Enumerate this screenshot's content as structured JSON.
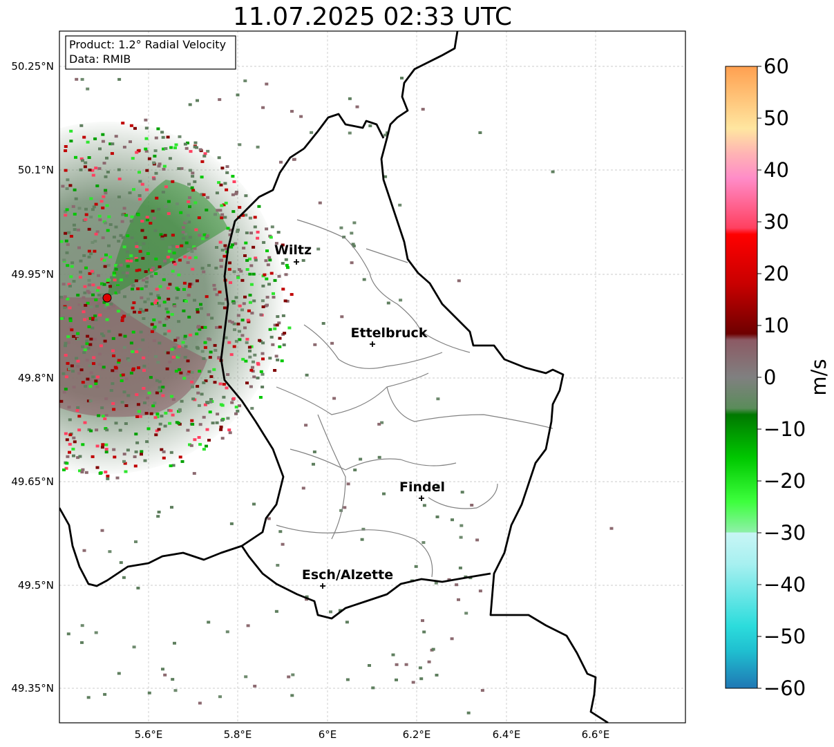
{
  "title": "11.07.2025 02:33 UTC",
  "info_box": {
    "product": "Product: 1.2° Radial Velocity",
    "source": "Data: RMIB"
  },
  "map": {
    "extent": {
      "lon": [
        5.4,
        6.8
      ],
      "lat": [
        49.3,
        50.3
      ]
    },
    "lat_ticks": [
      "50.25°N",
      "50.1°N",
      "49.95°N",
      "49.8°N",
      "49.65°N",
      "49.5°N",
      "49.35°N"
    ],
    "lon_ticks": [
      "5.6°E",
      "5.8°E",
      "6°E",
      "6.2°E",
      "6.4°E",
      "6.6°E"
    ],
    "gridlines": true,
    "radar_site": {
      "lon": 5.505,
      "lat": 49.914
    },
    "cities": [
      {
        "name": "Wiltz",
        "lon": 5.932,
        "lat": 49.967
      },
      {
        "name": "Ettelbruck",
        "lon": 6.104,
        "lat": 49.848
      },
      {
        "name": "Findel",
        "lon": 6.211,
        "lat": 49.627
      },
      {
        "name": "Esch/Alzette",
        "lon": 5.981,
        "lat": 49.5
      }
    ]
  },
  "colorbar": {
    "label": "m/s",
    "min": -60,
    "max": 60,
    "ticks": [
      "60",
      "50",
      "40",
      "30",
      "20",
      "10",
      "0",
      "−10",
      "−20",
      "−30",
      "−40",
      "−50",
      "−60"
    ]
  },
  "colors": {
    "border": "#000000",
    "canton_lines": "#808080",
    "radar_marker": "#e00000"
  }
}
